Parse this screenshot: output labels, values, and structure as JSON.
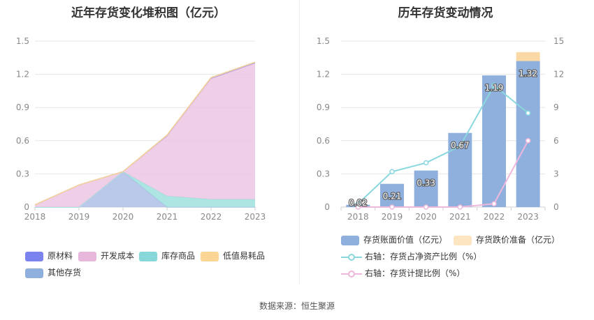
{
  "left": {
    "title": "近年存货变化堆积图（亿元）",
    "legend": [
      {
        "label": "原材料",
        "color": "#7b83ee"
      },
      {
        "label": "开发成本",
        "color": "#e8b8dc"
      },
      {
        "label": "库存商品",
        "color": "#88d8da"
      },
      {
        "label": "低值易耗品",
        "color": "#fbd594"
      },
      {
        "label": "其他存货",
        "color": "#8fb0dd"
      }
    ]
  },
  "right": {
    "title": "历年存货变动情况",
    "legend": [
      {
        "label": "存货账面价值（亿元）",
        "color": "#8fb0dd"
      },
      {
        "label": "存货跌价准备（亿元）",
        "color": "#fde5c1"
      },
      {
        "label": "右轴：存货占净资产比例（%）",
        "color": "#8ad8de"
      },
      {
        "label": "右轴：存货计提比例（%）",
        "color": "#f0b7dc"
      }
    ]
  },
  "source": "数据来源：恒生聚源",
  "chart_data": [
    {
      "type": "area",
      "title": "近年存货变化堆积图（亿元）",
      "stacked": true,
      "x": [
        "2018",
        "2019",
        "2020",
        "2021",
        "2022",
        "2023"
      ],
      "ylim": [
        0,
        1.5
      ],
      "yticks": [
        "0",
        "0.3",
        "0.6",
        "0.9",
        "1.2",
        "1.5"
      ],
      "series": [
        {
          "name": "其他存货",
          "color": "#aec0e6",
          "values": [
            0,
            0,
            0.32,
            0,
            0,
            0
          ]
        },
        {
          "name": "库存商品",
          "color": "#9fe0de",
          "values": [
            0,
            0,
            0,
            0.1,
            0.07,
            0.07
          ]
        },
        {
          "name": "开发成本",
          "color": "#ecc6e3",
          "values": [
            0.02,
            0.2,
            0,
            0.54,
            1.09,
            1.23
          ]
        },
        {
          "name": "原材料",
          "color": "#8c8ff0",
          "values": [
            0,
            0,
            0,
            0.01,
            0.01,
            0.01
          ]
        },
        {
          "name": "低值易耗品",
          "color": "#fbd594",
          "values": [
            0,
            0,
            0,
            0,
            0,
            0
          ]
        }
      ],
      "legend_position": "bottom"
    },
    {
      "type": "bar",
      "title": "历年存货变动情况",
      "categories": [
        "2018",
        "2019",
        "2020",
        "2021",
        "2022",
        "2023"
      ],
      "ylim": [
        0,
        1.5
      ],
      "yticks": [
        "0",
        "0.3",
        "0.6",
        "0.9",
        "1.2",
        "1.5"
      ],
      "y2lim": [
        0,
        15
      ],
      "y2ticks": [
        "0",
        "3",
        "6",
        "9",
        "12",
        "15"
      ],
      "series": [
        {
          "name": "存货账面价值（亿元）",
          "type": "bar",
          "color": "#8fb0dd",
          "values": [
            0.02,
            0.21,
            0.33,
            0.67,
            1.19,
            1.32
          ],
          "labels": [
            "0.02",
            "0.21",
            "0.33",
            "0.67",
            "1.19",
            "1.32"
          ]
        },
        {
          "name": "存货跌价准备（亿元）",
          "type": "bar",
          "stacked": true,
          "color": "#fbd9a5",
          "values": [
            0,
            0,
            0,
            0,
            0,
            0.08
          ]
        },
        {
          "name": "右轴：存货占净资产比例（%）",
          "type": "line",
          "axis": "right",
          "color": "#8ad8de",
          "values": [
            0.3,
            3.2,
            4.0,
            5.5,
            11.0,
            8.5
          ]
        },
        {
          "name": "右轴：存货计提比例（%）",
          "type": "line",
          "axis": "right",
          "color": "#f0b7dc",
          "values": [
            0,
            0,
            0,
            0,
            0.3,
            6.0
          ]
        }
      ],
      "legend_position": "bottom"
    }
  ]
}
